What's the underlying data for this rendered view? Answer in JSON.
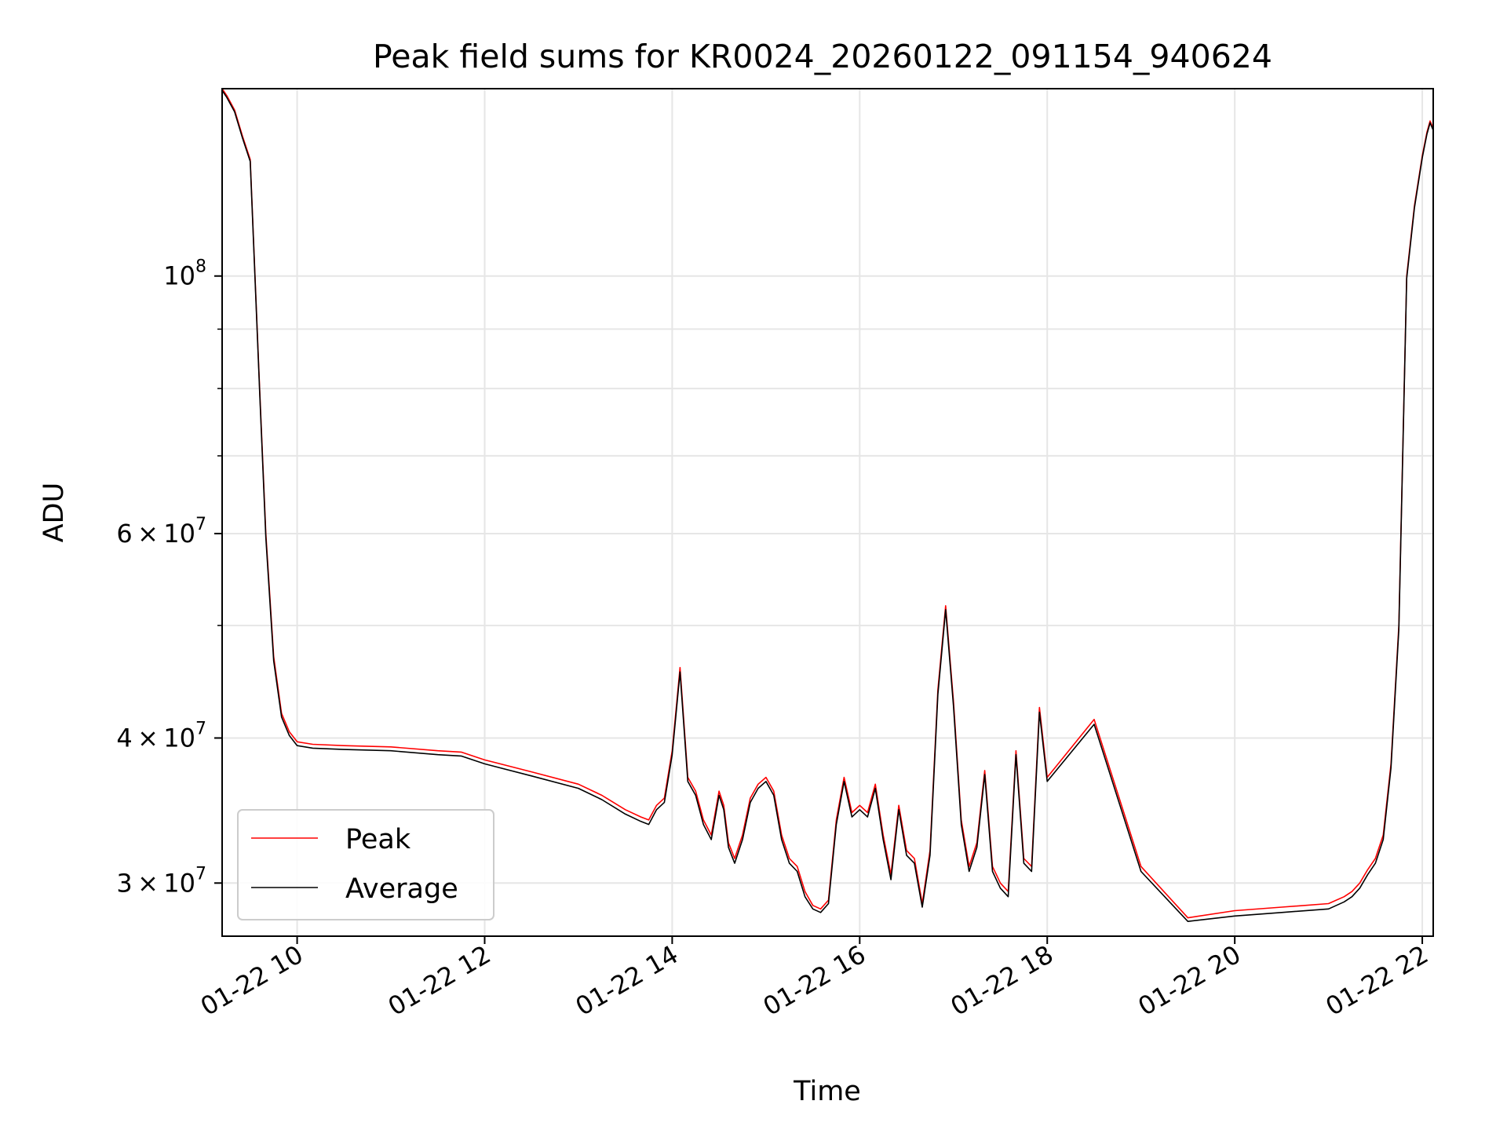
{
  "chart_data": {
    "type": "line",
    "title": "Peak field sums for KR0024_20260122_091154_940624",
    "xlabel": "Time",
    "ylabel": "ADU",
    "x_ticks": [
      "01-22 10",
      "01-22 12",
      "01-22 14",
      "01-22 16",
      "01-22 18",
      "01-22 20",
      "01-22 22"
    ],
    "xlim": [
      "2026-01-22T09:12",
      "2026-01-22T22:07"
    ],
    "yscale": "log",
    "ylim": [
      27000000,
      145000000
    ],
    "y_ticks": [
      {
        "value": 30000000,
        "mantissa": "3",
        "times": "×",
        "base": "10",
        "exponent": "7"
      },
      {
        "value": 40000000,
        "mantissa": "4",
        "times": "×",
        "base": "10",
        "exponent": "7"
      },
      {
        "value": 60000000,
        "mantissa": "6",
        "times": "×",
        "base": "10",
        "exponent": "7"
      },
      {
        "value": 100000000,
        "mantissa": "",
        "times": "",
        "base": "10",
        "exponent": "8"
      }
    ],
    "y_minor_ticks": [
      50000000,
      70000000,
      80000000,
      90000000
    ],
    "grid": true,
    "legend_position": "lower-left",
    "series": [
      {
        "name": "Peak",
        "color": "#ff0000",
        "x": [
          "2026-01-22T09:12",
          "2026-01-22T09:15",
          "2026-01-22T09:20",
          "2026-01-22T09:25",
          "2026-01-22T09:30",
          "2026-01-22T09:36",
          "2026-01-22T09:40",
          "2026-01-22T09:45",
          "2026-01-22T09:50",
          "2026-01-22T09:55",
          "2026-01-22T10:00",
          "2026-01-22T10:10",
          "2026-01-22T10:30",
          "2026-01-22T11:00",
          "2026-01-22T11:30",
          "2026-01-22T11:45",
          "2026-01-22T12:00",
          "2026-01-22T12:30",
          "2026-01-22T13:00",
          "2026-01-22T13:15",
          "2026-01-22T13:30",
          "2026-01-22T13:40",
          "2026-01-22T13:45",
          "2026-01-22T13:50",
          "2026-01-22T13:55",
          "2026-01-22T14:00",
          "2026-01-22T14:05",
          "2026-01-22T14:10",
          "2026-01-22T14:15",
          "2026-01-22T14:20",
          "2026-01-22T14:25",
          "2026-01-22T14:30",
          "2026-01-22T14:33",
          "2026-01-22T14:36",
          "2026-01-22T14:40",
          "2026-01-22T14:45",
          "2026-01-22T14:50",
          "2026-01-22T14:55",
          "2026-01-22T15:00",
          "2026-01-22T15:05",
          "2026-01-22T15:10",
          "2026-01-22T15:15",
          "2026-01-22T15:20",
          "2026-01-22T15:25",
          "2026-01-22T15:30",
          "2026-01-22T15:35",
          "2026-01-22T15:40",
          "2026-01-22T15:45",
          "2026-01-22T15:50",
          "2026-01-22T15:55",
          "2026-01-22T16:00",
          "2026-01-22T16:05",
          "2026-01-22T16:10",
          "2026-01-22T16:15",
          "2026-01-22T16:20",
          "2026-01-22T16:25",
          "2026-01-22T16:30",
          "2026-01-22T16:35",
          "2026-01-22T16:40",
          "2026-01-22T16:45",
          "2026-01-22T16:50",
          "2026-01-22T16:55",
          "2026-01-22T17:00",
          "2026-01-22T17:05",
          "2026-01-22T17:10",
          "2026-01-22T17:15",
          "2026-01-22T17:20",
          "2026-01-22T17:25",
          "2026-01-22T17:30",
          "2026-01-22T17:35",
          "2026-01-22T17:40",
          "2026-01-22T17:45",
          "2026-01-22T17:50",
          "2026-01-22T17:55",
          "2026-01-22T18:00",
          "2026-01-22T18:30",
          "2026-01-22T19:00",
          "2026-01-22T19:30",
          "2026-01-22T20:00",
          "2026-01-22T20:30",
          "2026-01-22T21:00",
          "2026-01-22T21:10",
          "2026-01-22T21:15",
          "2026-01-22T21:20",
          "2026-01-22T21:25",
          "2026-01-22T21:30",
          "2026-01-22T21:35",
          "2026-01-22T21:40",
          "2026-01-22T21:45",
          "2026-01-22T21:50",
          "2026-01-22T21:55",
          "2026-01-22T22:00",
          "2026-01-22T22:03",
          "2026-01-22T22:05",
          "2026-01-22T22:07"
        ],
        "values": [
          145000000,
          143000000,
          139000000,
          132000000,
          126000000,
          80000000,
          60000000,
          47000000,
          42000000,
          40500000,
          39700000,
          39500000,
          39400000,
          39300000,
          39000000,
          38900000,
          38300000,
          37400000,
          36500000,
          35700000,
          34700000,
          34200000,
          34000000,
          35000000,
          35500000,
          39000000,
          46000000,
          37000000,
          36000000,
          34000000,
          33000000,
          36000000,
          35000000,
          32500000,
          31500000,
          33000000,
          35500000,
          36500000,
          37000000,
          36000000,
          33000000,
          31500000,
          31000000,
          29500000,
          28700000,
          28500000,
          29000000,
          34000000,
          37000000,
          34500000,
          35000000,
          34500000,
          36500000,
          33000000,
          30500000,
          35000000,
          32000000,
          31500000,
          28800000,
          32000000,
          44000000,
          52000000,
          43000000,
          34000000,
          31000000,
          32500000,
          37500000,
          31000000,
          30000000,
          29500000,
          39000000,
          31500000,
          31000000,
          42500000,
          37000000,
          41500000,
          31000000,
          28000000,
          28400000,
          28600000,
          28800000,
          29200000,
          29500000,
          30000000,
          30800000,
          31500000,
          33000000,
          38000000,
          50000000,
          100000000,
          115000000,
          127000000,
          133000000,
          136000000,
          134000000
        ]
      },
      {
        "name": "Average",
        "color": "#000000",
        "x": [
          "2026-01-22T09:12",
          "2026-01-22T09:15",
          "2026-01-22T09:20",
          "2026-01-22T09:25",
          "2026-01-22T09:30",
          "2026-01-22T09:36",
          "2026-01-22T09:40",
          "2026-01-22T09:45",
          "2026-01-22T09:50",
          "2026-01-22T09:55",
          "2026-01-22T10:00",
          "2026-01-22T10:10",
          "2026-01-22T10:30",
          "2026-01-22T11:00",
          "2026-01-22T11:30",
          "2026-01-22T11:45",
          "2026-01-22T12:00",
          "2026-01-22T12:30",
          "2026-01-22T13:00",
          "2026-01-22T13:15",
          "2026-01-22T13:30",
          "2026-01-22T13:40",
          "2026-01-22T13:45",
          "2026-01-22T13:50",
          "2026-01-22T13:55",
          "2026-01-22T14:00",
          "2026-01-22T14:05",
          "2026-01-22T14:10",
          "2026-01-22T14:15",
          "2026-01-22T14:20",
          "2026-01-22T14:25",
          "2026-01-22T14:30",
          "2026-01-22T14:33",
          "2026-01-22T14:36",
          "2026-01-22T14:40",
          "2026-01-22T14:45",
          "2026-01-22T14:50",
          "2026-01-22T14:55",
          "2026-01-22T15:00",
          "2026-01-22T15:05",
          "2026-01-22T15:10",
          "2026-01-22T15:15",
          "2026-01-22T15:20",
          "2026-01-22T15:25",
          "2026-01-22T15:30",
          "2026-01-22T15:35",
          "2026-01-22T15:40",
          "2026-01-22T15:45",
          "2026-01-22T15:50",
          "2026-01-22T15:55",
          "2026-01-22T16:00",
          "2026-01-22T16:05",
          "2026-01-22T16:10",
          "2026-01-22T16:15",
          "2026-01-22T16:20",
          "2026-01-22T16:25",
          "2026-01-22T16:30",
          "2026-01-22T16:35",
          "2026-01-22T16:40",
          "2026-01-22T16:45",
          "2026-01-22T16:50",
          "2026-01-22T16:55",
          "2026-01-22T17:00",
          "2026-01-22T17:05",
          "2026-01-22T17:10",
          "2026-01-22T17:15",
          "2026-01-22T17:20",
          "2026-01-22T17:25",
          "2026-01-22T17:30",
          "2026-01-22T17:35",
          "2026-01-22T17:40",
          "2026-01-22T17:45",
          "2026-01-22T17:50",
          "2026-01-22T17:55",
          "2026-01-22T18:00",
          "2026-01-22T18:30",
          "2026-01-22T19:00",
          "2026-01-22T19:30",
          "2026-01-22T20:00",
          "2026-01-22T20:30",
          "2026-01-22T21:00",
          "2026-01-22T21:10",
          "2026-01-22T21:15",
          "2026-01-22T21:20",
          "2026-01-22T21:25",
          "2026-01-22T21:30",
          "2026-01-22T21:35",
          "2026-01-22T21:40",
          "2026-01-22T21:45",
          "2026-01-22T21:50",
          "2026-01-22T21:55",
          "2026-01-22T22:00",
          "2026-01-22T22:03",
          "2026-01-22T22:05",
          "2026-01-22T22:07"
        ],
        "values": [
          144500000,
          142500000,
          138500000,
          131500000,
          125500000,
          79500000,
          59500000,
          46600000,
          41700000,
          40200000,
          39400000,
          39200000,
          39100000,
          39000000,
          38700000,
          38600000,
          38000000,
          37100000,
          36200000,
          35400000,
          34400000,
          33900000,
          33700000,
          34700000,
          35200000,
          38700000,
          45600000,
          36700000,
          35700000,
          33700000,
          32700000,
          35700000,
          34700000,
          32200000,
          31200000,
          32700000,
          35200000,
          36200000,
          36700000,
          35700000,
          32700000,
          31200000,
          30700000,
          29200000,
          28500000,
          28300000,
          28800000,
          33700000,
          36700000,
          34200000,
          34700000,
          34200000,
          36200000,
          32700000,
          30200000,
          34700000,
          31700000,
          31200000,
          28600000,
          31700000,
          43600000,
          51600000,
          42600000,
          33700000,
          30700000,
          32200000,
          37200000,
          30700000,
          29700000,
          29200000,
          38700000,
          31200000,
          30700000,
          42100000,
          36700000,
          41100000,
          30700000,
          27800000,
          28100000,
          28300000,
          28500000,
          28900000,
          29200000,
          29700000,
          30500000,
          31200000,
          32700000,
          37700000,
          49600000,
          99500000,
          114500000,
          126500000,
          132500000,
          135500000,
          133500000
        ]
      }
    ]
  }
}
